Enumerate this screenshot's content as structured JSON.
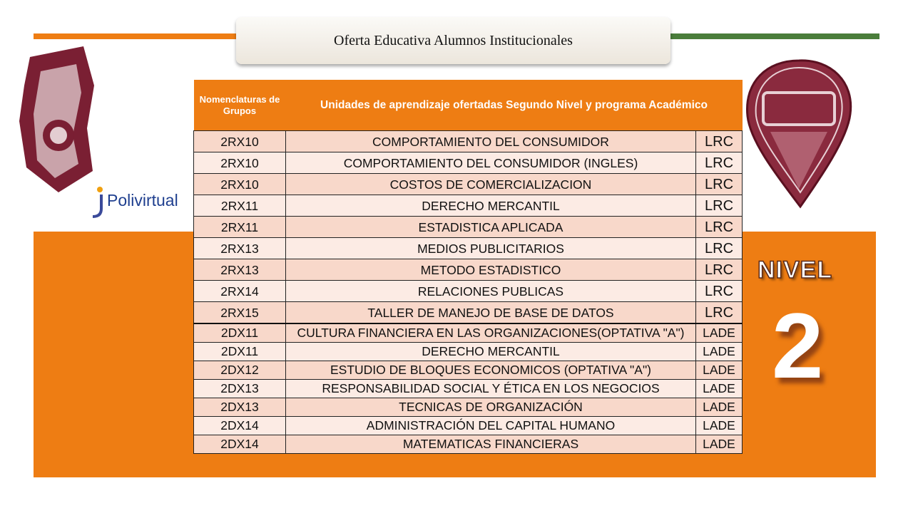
{
  "header": {
    "title": "Oferta Educativa Alumnos Institucionales"
  },
  "logos": {
    "polivirtual_prefix": "Poli",
    "polivirtual_suffix": "virtual"
  },
  "badge": {
    "label": "NIVEL",
    "number": "2"
  },
  "table": {
    "columns": [
      "Nomenclaturas de Grupos",
      "Unidades de aprendizaje ofertadas Segundo Nivel y programa Académico"
    ],
    "sections": [
      {
        "rows": [
          [
            "2RX10",
            "COMPORTAMIENTO  DEL CONSUMIDOR",
            "LRC"
          ],
          [
            "2RX10",
            "COMPORTAMIENTO  DEL CONSUMIDOR  (INGLES)",
            "LRC"
          ],
          [
            "2RX10",
            "COSTOS  DE COMERCIALIZACION",
            "LRC"
          ],
          [
            "2RX11",
            "DERECHO  MERCANTIL",
            "LRC"
          ],
          [
            "2RX11",
            "ESTADISTICA  APLICADA",
            "LRC"
          ],
          [
            "2RX13",
            "MEDIOS  PUBLICITARIOS",
            "LRC"
          ],
          [
            "2RX13",
            "METODO  ESTADISTICO",
            "LRC"
          ],
          [
            "2RX14",
            "RELACIONES  PUBLICAS",
            "LRC"
          ],
          [
            "2RX15",
            "TALLER  DE MANEJO  DE BASE DE DATOS",
            "LRC"
          ]
        ]
      },
      {
        "rows": [
          [
            "2DX11",
            "CULTURA  FINANCIERA  EN LAS ORGANIZACIONES(OPTATIVA  \"A\")",
            "LADE"
          ],
          [
            "2DX11",
            "DERECHO  MERCANTIL",
            "LADE"
          ],
          [
            "2DX12",
            "ESTUDIO  DE BLOQUES  ECONOMICOS  (OPTATIVA  \"A\")",
            "LADE"
          ],
          [
            "2DX13",
            "RESPONSABILIDAD  SOCIAL Y ÉTICA EN LOS NEGOCIOS",
            "LADE"
          ],
          [
            "2DX13",
            "TECNICAS  DE ORGANIZACIÓN",
            "LADE"
          ],
          [
            "2DX14",
            "ADMINISTRACIÓN  DEL CAPITAL  HUMANO",
            "LADE"
          ],
          [
            "2DX14",
            "MATEMATICAS  FINANCIERAS",
            "LADE"
          ]
        ]
      }
    ]
  }
}
